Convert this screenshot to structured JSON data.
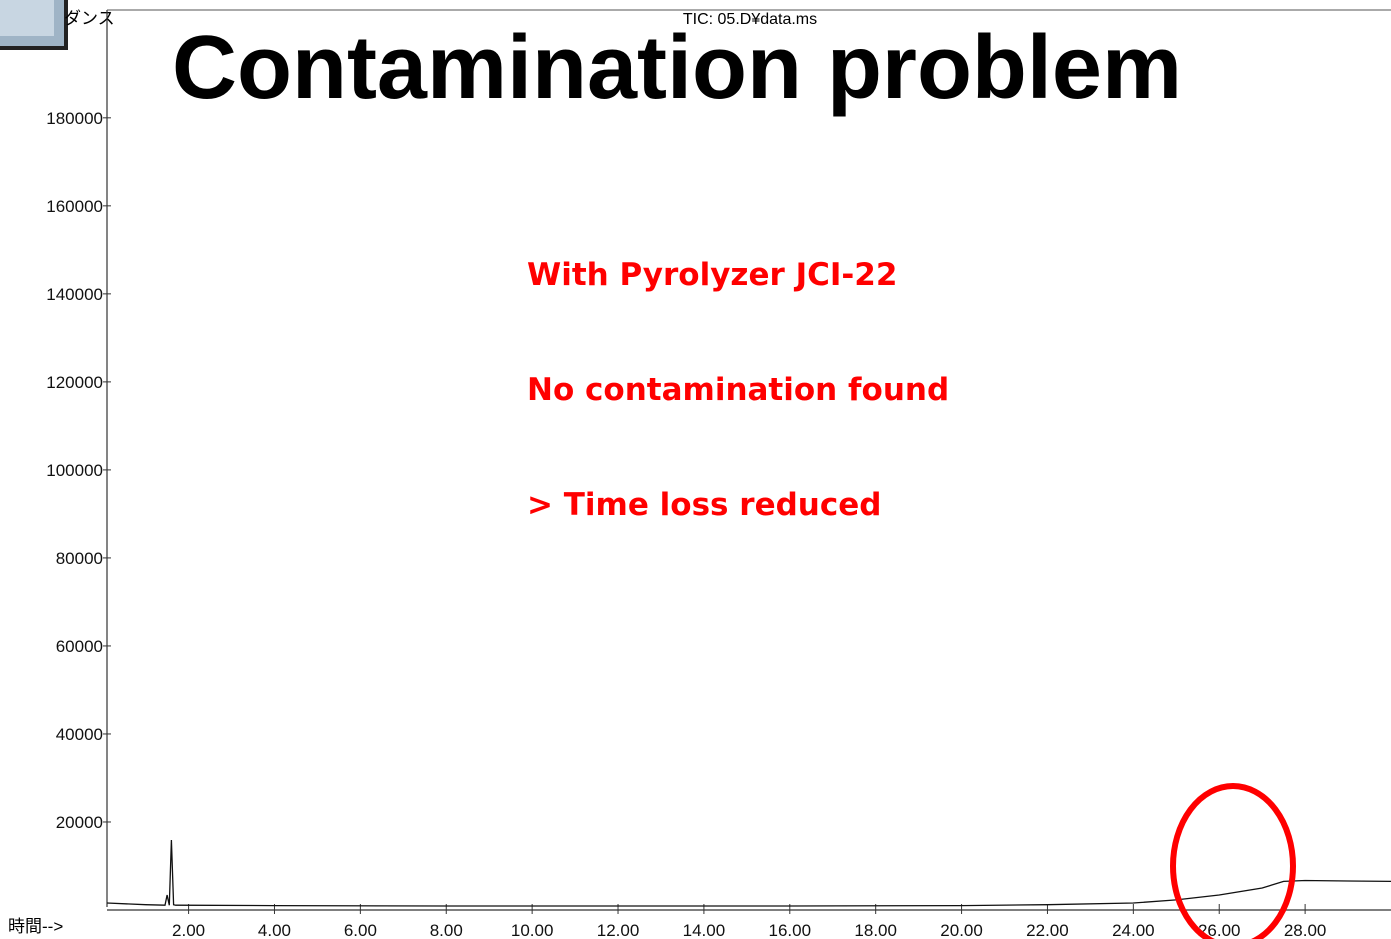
{
  "chart_data": {
    "type": "line",
    "title": "TIC: 05.D¥data.ms",
    "ylabel": "ダンス",
    "xlabel": "時間-->",
    "annotations": [
      "Contamination problem",
      "With Pyrolyzer JCI-22",
      "No contamination found",
      "> Time loss reduced"
    ],
    "x": [
      0.1,
      1.0,
      1.45,
      1.5,
      1.55,
      1.6,
      1.65,
      1.7,
      4,
      8,
      12,
      16,
      20,
      22,
      24,
      25,
      26,
      27,
      27.5,
      28,
      29,
      30
    ],
    "values": [
      1600,
      1200,
      1100,
      3400,
      1100,
      15900,
      1200,
      1100,
      1000,
      900,
      900,
      900,
      1000,
      1200,
      1600,
      2300,
      3400,
      5000,
      6500,
      6700,
      6600,
      6500
    ],
    "color": "#111111",
    "xlim": [
      0.1,
      30
    ],
    "ylim": [
      0,
      204500
    ],
    "xticks": [
      {
        "value": 2,
        "label": "2.00"
      },
      {
        "value": 4,
        "label": "4.00"
      },
      {
        "value": 6,
        "label": "6.00"
      },
      {
        "value": 8,
        "label": "8.00"
      },
      {
        "value": 10,
        "label": "10.00"
      },
      {
        "value": 12,
        "label": "12.00"
      },
      {
        "value": 14,
        "label": "14.00"
      },
      {
        "value": 16,
        "label": "16.00"
      },
      {
        "value": 18,
        "label": "18.00"
      },
      {
        "value": 20,
        "label": "20.00"
      },
      {
        "value": 22,
        "label": "22.00"
      },
      {
        "value": 24,
        "label": "24.00"
      },
      {
        "value": 26,
        "label": "26.00"
      },
      {
        "value": 28,
        "label": "28.00"
      }
    ],
    "yticks": [
      20000,
      40000,
      60000,
      80000,
      100000,
      120000,
      140000,
      160000,
      180000
    ]
  }
}
